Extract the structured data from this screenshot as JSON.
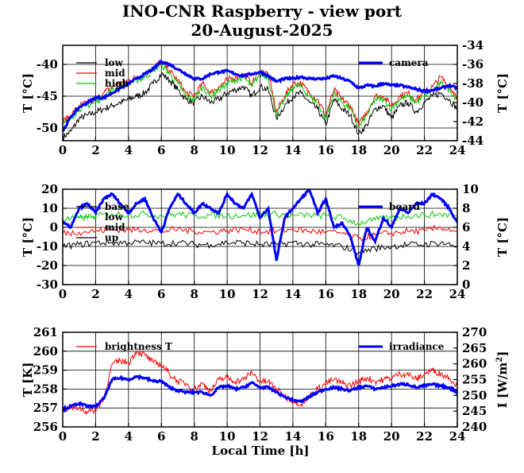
{
  "title": "INO-CNR Raspberry - view port",
  "subtitle": "20-August-2025",
  "xlabel": "Local Time [h]",
  "chart_data": [
    {
      "type": "line",
      "panel": "camera_temperatures",
      "ylabel": "T [°C]",
      "ylim": [
        -52,
        -37
      ],
      "yticks": [
        -50,
        -45,
        -40
      ],
      "y2label": "T [°C]",
      "y2lim": [
        -44,
        -34
      ],
      "y2ticks": [
        -44,
        -42,
        -40,
        -38,
        -36,
        -34
      ],
      "xlim": [
        0,
        24
      ],
      "xticks": [
        0,
        2,
        4,
        6,
        8,
        10,
        12,
        14,
        16,
        18,
        20,
        22,
        24
      ],
      "grid": true,
      "legend_left": "top-left",
      "legend_right": "top-right",
      "series": [
        {
          "name": "low",
          "axis": "left",
          "color": "#000000",
          "x": [
            0,
            0.5,
            1,
            1.5,
            2,
            2.5,
            3,
            3.5,
            4,
            4.5,
            5,
            5.5,
            6,
            6.5,
            7,
            7.5,
            8,
            8.5,
            9,
            9.5,
            10,
            10.5,
            11,
            11.5,
            12,
            12.5,
            13,
            13.5,
            14,
            14.5,
            15,
            15.5,
            16,
            16.5,
            17,
            17.5,
            18,
            18.5,
            19,
            19.5,
            20,
            20.5,
            21,
            21.5,
            22,
            22.5,
            23,
            23.5,
            24
          ],
          "values": [
            -51.5,
            -50.5,
            -48.5,
            -48,
            -47.5,
            -47,
            -46.5,
            -46,
            -45.5,
            -45,
            -44.5,
            -43,
            -41.5,
            -42.5,
            -44,
            -45.5,
            -46,
            -45,
            -46,
            -45.5,
            -44.5,
            -44,
            -43.5,
            -45,
            -43.5,
            -44,
            -48.5,
            -46.5,
            -45,
            -44.5,
            -46,
            -47,
            -49.5,
            -45.5,
            -47,
            -48,
            -51,
            -49.5,
            -47,
            -46.5,
            -48.5,
            -46.5,
            -46,
            -47.5,
            -46,
            -45,
            -44.5,
            -45.5,
            -47
          ]
        },
        {
          "name": "mid",
          "axis": "left",
          "color": "#ff0000",
          "x": [
            0,
            0.5,
            1,
            1.5,
            2,
            2.5,
            3,
            3.5,
            4,
            4.5,
            5,
            5.5,
            6,
            6.5,
            7,
            7.5,
            8,
            8.5,
            9,
            9.5,
            10,
            10.5,
            11,
            11.5,
            12,
            12.5,
            13,
            13.5,
            14,
            14.5,
            15,
            15.5,
            16,
            16.5,
            17,
            17.5,
            18,
            18.5,
            19,
            19.5,
            20,
            20.5,
            21,
            21.5,
            22,
            22.5,
            23,
            23.5,
            24
          ],
          "values": [
            -49,
            -48,
            -46.5,
            -46,
            -45.5,
            -44.5,
            -43.5,
            -43,
            -42.5,
            -42,
            -41.5,
            -40.5,
            -39.5,
            -41,
            -42.5,
            -44.5,
            -45,
            -43,
            -44.5,
            -43.5,
            -42.5,
            -42,
            -41.5,
            -43,
            -41,
            -41.5,
            -47.5,
            -45,
            -43,
            -43,
            -44.5,
            -45.5,
            -48,
            -44,
            -45.5,
            -46.5,
            -49.5,
            -47.5,
            -45,
            -45,
            -46.5,
            -45,
            -44.5,
            -45.5,
            -44.5,
            -43.5,
            -42,
            -43.5,
            -45
          ]
        },
        {
          "name": "high",
          "axis": "left",
          "color": "#00cc00",
          "x": [
            0,
            0.5,
            1,
            1.5,
            2,
            2.5,
            3,
            3.5,
            4,
            4.5,
            5,
            5.5,
            6,
            6.5,
            7,
            7.5,
            8,
            8.5,
            9,
            9.5,
            10,
            10.5,
            11,
            11.5,
            12,
            12.5,
            13,
            13.5,
            14,
            14.5,
            15,
            15.5,
            16,
            16.5,
            17,
            17.5,
            18,
            18.5,
            19,
            19.5,
            20,
            20.5,
            21,
            21.5,
            22,
            22.5,
            23,
            23.5,
            24
          ],
          "values": [
            -49.5,
            -48.5,
            -47,
            -46.5,
            -46,
            -45,
            -44,
            -43.5,
            -43,
            -42.5,
            -42,
            -41,
            -40,
            -41.5,
            -43,
            -45,
            -45.5,
            -43.5,
            -45,
            -44,
            -43,
            -42.5,
            -42,
            -43.5,
            -41.5,
            -42,
            -48,
            -45.5,
            -43.5,
            -43.5,
            -45,
            -46,
            -48.5,
            -44.5,
            -46,
            -47,
            -50,
            -48,
            -45.5,
            -45.5,
            -47,
            -45.5,
            -45,
            -46,
            -45,
            -44,
            -43,
            -44,
            -45.5
          ]
        },
        {
          "name": "camera",
          "axis": "right",
          "color": "#0000ff",
          "x": [
            0,
            0.5,
            1,
            1.5,
            2,
            2.5,
            3,
            3.5,
            4,
            4.5,
            5,
            5.5,
            6,
            6.5,
            7,
            7.5,
            8,
            8.5,
            9,
            9.5,
            10,
            10.5,
            11,
            11.5,
            12,
            12.5,
            13,
            13.5,
            14,
            14.5,
            15,
            15.5,
            16,
            16.5,
            17,
            17.5,
            18,
            18.5,
            19,
            19.5,
            20,
            20.5,
            21,
            21.5,
            22,
            22.5,
            23,
            23.5,
            24
          ],
          "values": [
            -43,
            -41.5,
            -40.5,
            -40,
            -39.5,
            -39.5,
            -39,
            -38.5,
            -38,
            -37.5,
            -37,
            -36.5,
            -35.7,
            -36,
            -36.5,
            -37,
            -37.5,
            -37.5,
            -37,
            -36.8,
            -36.7,
            -37,
            -37.2,
            -37,
            -36.8,
            -37.2,
            -37.8,
            -37.5,
            -37.5,
            -37.3,
            -37.5,
            -37.5,
            -37.5,
            -37.2,
            -37.5,
            -37.8,
            -38.5,
            -38.2,
            -38.3,
            -38,
            -38.2,
            -38.2,
            -38.4,
            -38.6,
            -38.8,
            -38.7,
            -38.5,
            -38.2,
            -38.5
          ]
        }
      ]
    },
    {
      "type": "line",
      "panel": "board_temperatures",
      "ylabel": "T [°C]",
      "ylim": [
        -30,
        20
      ],
      "yticks": [
        -30,
        -20,
        -10,
        0,
        10,
        20
      ],
      "y2label": "T [°C]",
      "y2lim": [
        0,
        10
      ],
      "y2ticks": [
        0,
        2,
        4,
        6,
        8,
        10
      ],
      "xlim": [
        0,
        24
      ],
      "xticks": [
        0,
        2,
        4,
        6,
        8,
        10,
        12,
        14,
        16,
        18,
        20,
        22,
        24
      ],
      "grid": true,
      "legend_left": "top-left",
      "legend_right": "top-right",
      "series": [
        {
          "name": "base",
          "axis": "left",
          "color": "#000000",
          "x": [
            0,
            1,
            2,
            3,
            4,
            5,
            6,
            7,
            8,
            9,
            10,
            11,
            12,
            13,
            14,
            15,
            16,
            17,
            18,
            19,
            20,
            21,
            22,
            23,
            24
          ],
          "values": [
            -10,
            -9,
            -8,
            -8,
            -8,
            -8,
            -8.5,
            -8,
            -9,
            -9,
            -8,
            -8,
            -9,
            -9,
            -8,
            -9,
            -9,
            -10,
            -13,
            -11,
            -10,
            -9,
            -9,
            -8,
            -10
          ]
        },
        {
          "name": "low",
          "axis": "left",
          "color": "#00cc00",
          "x": [
            0,
            1,
            2,
            3,
            4,
            5,
            6,
            7,
            8,
            9,
            10,
            11,
            12,
            13,
            14,
            15,
            16,
            17,
            18,
            19,
            20,
            21,
            22,
            23,
            24
          ],
          "values": [
            4,
            5,
            6,
            7,
            6.5,
            7,
            6,
            7,
            6,
            6.5,
            6,
            6.5,
            6.5,
            7,
            6,
            6.5,
            6,
            5,
            2,
            4,
            5,
            6,
            6.5,
            7,
            6
          ]
        },
        {
          "name": "mid",
          "axis": "left",
          "color": "#ff0000",
          "x": [
            0,
            1,
            2,
            3,
            4,
            5,
            6,
            7,
            8,
            9,
            10,
            11,
            12,
            13,
            14,
            15,
            16,
            17,
            18,
            19,
            20,
            21,
            22,
            23,
            24
          ],
          "values": [
            -3,
            -2.5,
            -2,
            -1,
            -1.5,
            -1,
            -2,
            -1,
            -2,
            -2.5,
            -1.5,
            -1,
            -2,
            -2,
            -1,
            -2,
            -2.5,
            -3,
            -6,
            -4,
            -3,
            -2,
            -2,
            0,
            -2
          ]
        },
        {
          "name": "up",
          "axis": "left",
          "color": "#000000",
          "x": [],
          "values": []
        },
        {
          "name": "board",
          "axis": "right",
          "color": "#0000ff",
          "x": [
            0,
            0.5,
            1,
            1.5,
            2,
            2.5,
            3,
            3.5,
            4,
            4.5,
            5,
            5.5,
            6,
            6.5,
            7,
            7.5,
            8,
            8.5,
            9,
            9.5,
            10,
            10.5,
            11,
            11.5,
            12,
            12.5,
            13,
            13.5,
            14,
            14.5,
            15,
            15.5,
            16,
            16.5,
            17,
            17.5,
            18,
            18.5,
            19,
            19.5,
            20,
            20.5,
            21,
            21.5,
            22,
            22.5,
            23,
            23.5,
            24
          ],
          "values": [
            6.5,
            6,
            8,
            8.5,
            7.5,
            9,
            9.5,
            8.5,
            7.5,
            8.5,
            9,
            7,
            5.5,
            8,
            9.5,
            8.5,
            7.5,
            8.5,
            8,
            7.5,
            9.5,
            8.5,
            8,
            9.5,
            7,
            8,
            2.5,
            7,
            8,
            9,
            10,
            7.5,
            9,
            6,
            6.5,
            5,
            2,
            6,
            4.5,
            7,
            6,
            8,
            7.5,
            8.5,
            8.5,
            9.5,
            9,
            8,
            6.5
          ]
        }
      ]
    },
    {
      "type": "line",
      "panel": "sky_brightness",
      "ylabel": "T [K]",
      "ylim": [
        256,
        261
      ],
      "yticks": [
        256,
        257,
        258,
        259,
        260,
        261
      ],
      "y2label": "I [W/m²]",
      "y2label_main": "I [W/m",
      "y2label_sup": "2",
      "y2label_end": "]",
      "y2lim": [
        240,
        270
      ],
      "y2ticks": [
        240,
        245,
        250,
        255,
        260,
        265,
        270
      ],
      "xlim": [
        0,
        24
      ],
      "xticks": [
        0,
        2,
        4,
        6,
        8,
        10,
        12,
        14,
        16,
        18,
        20,
        22,
        24
      ],
      "grid": true,
      "legend_left": "top-left",
      "legend_right": "top-right",
      "series": [
        {
          "name": "brightness T",
          "axis": "left",
          "color": "#ff0000",
          "x": [
            0,
            0.5,
            1,
            1.5,
            2,
            2.5,
            3,
            3.5,
            4,
            4.5,
            5,
            5.5,
            6,
            6.5,
            7,
            7.5,
            8,
            8.5,
            9,
            9.5,
            10,
            10.5,
            11,
            11.5,
            12,
            12.5,
            13,
            13.5,
            14,
            14.5,
            15,
            15.5,
            16,
            16.5,
            17,
            17.5,
            18,
            18.5,
            19,
            19.5,
            20,
            20.5,
            21,
            21.5,
            22,
            22.5,
            23,
            23.5,
            24
          ],
          "values": [
            256.9,
            257,
            257,
            256.8,
            256.9,
            257.5,
            259.3,
            259.5,
            259.4,
            260,
            259.8,
            259.4,
            259.3,
            258.8,
            258.4,
            258.3,
            258,
            258.3,
            257.9,
            258.5,
            258.6,
            258.4,
            258.5,
            258.9,
            258.4,
            258.4,
            258,
            257.6,
            257.4,
            257.2,
            257.6,
            258,
            258.3,
            258.5,
            258.3,
            258.2,
            258.4,
            258.6,
            258.4,
            258.5,
            258.6,
            258.8,
            258.8,
            258.5,
            258.8,
            259,
            258.8,
            258.6,
            258.2
          ]
        },
        {
          "name": "irradiance",
          "axis": "right",
          "color": "#0000ff",
          "x": [
            0,
            0.5,
            1,
            1.5,
            2,
            2.5,
            3,
            3.5,
            4,
            4.5,
            5,
            5.5,
            6,
            6.5,
            7,
            7.5,
            8,
            8.5,
            9,
            9.5,
            10,
            10.5,
            11,
            11.5,
            12,
            12.5,
            13,
            13.5,
            14,
            14.5,
            15,
            15.5,
            16,
            16.5,
            17,
            17.5,
            18,
            18.5,
            19,
            19.5,
            20,
            20.5,
            21,
            21.5,
            22,
            22.5,
            23,
            23.5,
            24
          ],
          "values": [
            245.5,
            246.5,
            247.5,
            246.5,
            246.5,
            249,
            255,
            255.5,
            255,
            256,
            255.5,
            254.5,
            254.5,
            252.5,
            251.5,
            251,
            251,
            251,
            250,
            252.5,
            253,
            252,
            252.5,
            254,
            252.5,
            252.5,
            251,
            249.5,
            248.5,
            248,
            249.5,
            251,
            252,
            252.5,
            252,
            251.5,
            252.5,
            253,
            252,
            252.5,
            253,
            253.5,
            253.5,
            252.5,
            253,
            253.5,
            253,
            252.5,
            251
          ]
        }
      ]
    }
  ]
}
